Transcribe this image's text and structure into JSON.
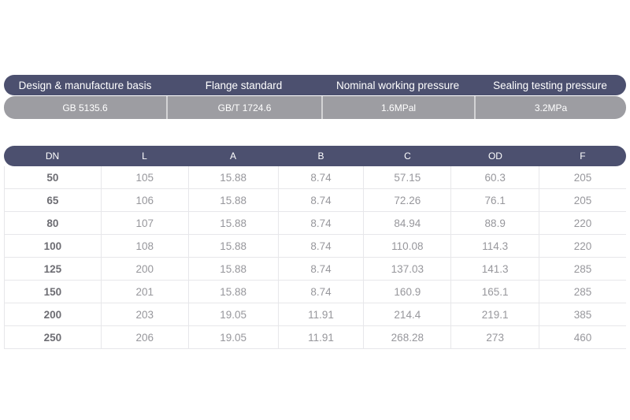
{
  "colors": {
    "header_bg": "#4c506f",
    "subheader_bg": "#9d9da2",
    "grid_border": "#e7e7ea",
    "cell_text": "#97979c",
    "dn_text": "#6d6d73"
  },
  "spec": {
    "headers": [
      "Design & manufacture basis",
      "Flange standard",
      "Nominal working pressure",
      "Sealing testing pressure"
    ],
    "values": [
      "GB 5135.6",
      "GB/T 1724.6",
      "1.6MPal",
      "3.2MPa"
    ]
  },
  "table": {
    "columns": [
      "DN",
      "L",
      "A",
      "B",
      "C",
      "OD",
      "F"
    ],
    "rows": [
      [
        "50",
        "105",
        "15.88",
        "8.74",
        "57.15",
        "60.3",
        "205"
      ],
      [
        "65",
        "106",
        "15.88",
        "8.74",
        "72.26",
        "76.1",
        "205"
      ],
      [
        "80",
        "107",
        "15.88",
        "8.74",
        "84.94",
        "88.9",
        "220"
      ],
      [
        "100",
        "108",
        "15.88",
        "8.74",
        "110.08",
        "114.3",
        "220"
      ],
      [
        "125",
        "200",
        "15.88",
        "8.74",
        "137.03",
        "141.3",
        "285"
      ],
      [
        "150",
        "201",
        "15.88",
        "8.74",
        "160.9",
        "165.1",
        "285"
      ],
      [
        "200",
        "203",
        "19.05",
        "11.91",
        "214.4",
        "219.1",
        "385"
      ],
      [
        "250",
        "206",
        "19.05",
        "11.91",
        "268.28",
        "273",
        "460"
      ]
    ]
  }
}
